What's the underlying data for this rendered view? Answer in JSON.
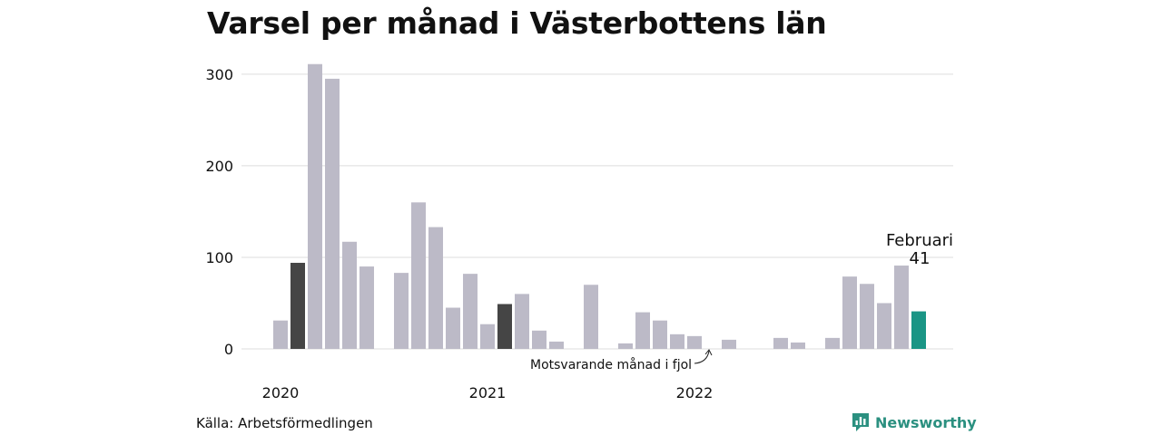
{
  "title": "Varsel per månad i Västerbottens län",
  "source": "Källa: Arbetsförmedlingen",
  "brand": {
    "name": "Newsworthy",
    "icon": "newsworthy-logo-icon",
    "color": "#2b9080"
  },
  "chart_data": {
    "type": "bar",
    "ylim": [
      0,
      330
    ],
    "y_ticks": [
      0,
      100,
      200,
      300
    ],
    "grid": true,
    "x_tick_labels": [
      {
        "label": "2020",
        "at_index": 0
      },
      {
        "label": "2021",
        "at_index": 12
      },
      {
        "label": "2022",
        "at_index": 24
      }
    ],
    "colors": {
      "default": "#bcbac7",
      "same_month_last_year": "#454545",
      "current": "#1a9585",
      "grid": "#dddddd"
    },
    "values": [
      31,
      94,
      311,
      295,
      117,
      90,
      0,
      83,
      160,
      133,
      45,
      82,
      27,
      49,
      60,
      20,
      8,
      0,
      70,
      0,
      6,
      40,
      31,
      16,
      14,
      0,
      10,
      0,
      0,
      12,
      7,
      0,
      12,
      79,
      71,
      50,
      91,
      41
    ],
    "highlight": {
      "same_month_last_year_indices": [
        1,
        13
      ],
      "current_index": 37
    },
    "annotations": {
      "current_label": "Februari",
      "current_value_label": "41",
      "last_year_label": "Motsvarande månad i fjol"
    }
  }
}
